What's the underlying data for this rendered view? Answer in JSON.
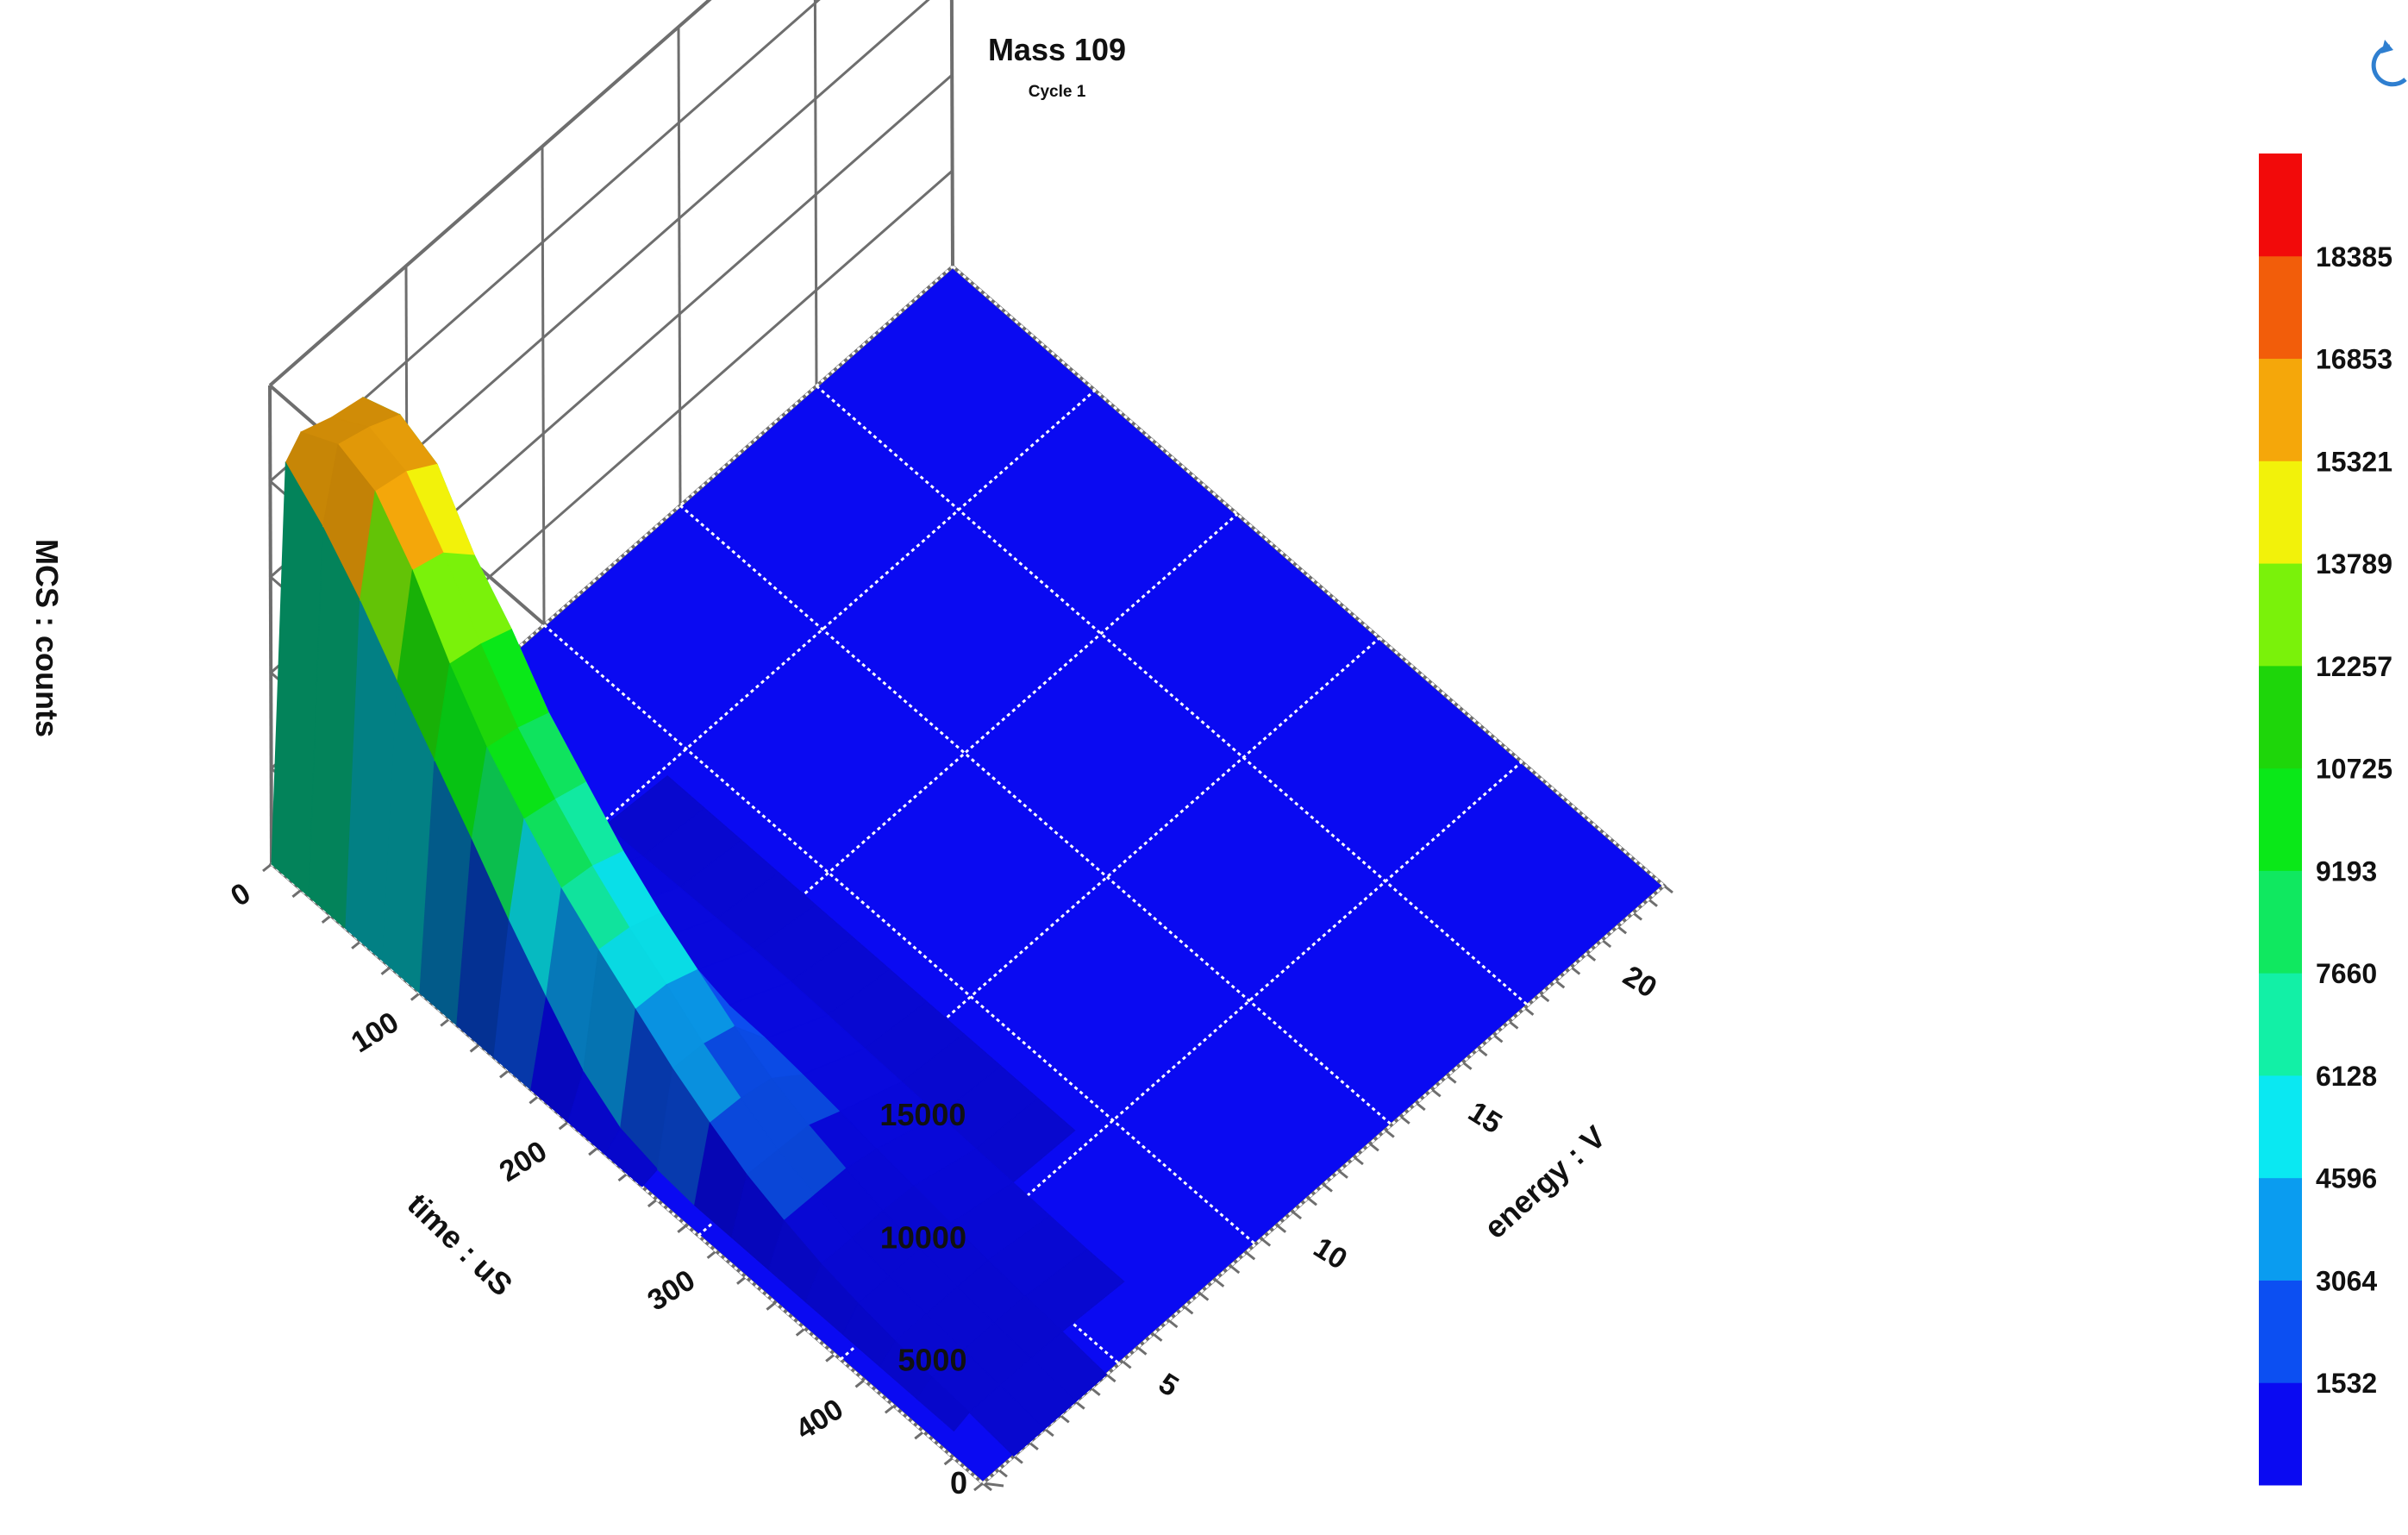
{
  "chart_data": {
    "type": "surface",
    "title": "Mass 109",
    "subtitle": "Cycle 1",
    "zlabel": "MCS : counts",
    "xlabel": "energy : V",
    "ylabel": "time : uS",
    "z_ticks": [
      "0",
      "5000",
      "10000",
      "15000"
    ],
    "x_ticks": [
      "5",
      "10",
      "15",
      "20"
    ],
    "y_ticks": [
      "0",
      "100",
      "200",
      "300",
      "400"
    ],
    "xlim": [
      0,
      22
    ],
    "ylim": [
      0,
      480
    ],
    "zlim": [
      0,
      19500
    ],
    "grid": true,
    "colorbar": {
      "ticks": [
        "1532",
        "3064",
        "4596",
        "6128",
        "7660",
        "9193",
        "10725",
        "12257",
        "13789",
        "15321",
        "16853",
        "18385"
      ],
      "colors": [
        "#0a0af2",
        "#0c4ff2",
        "#0a9cf0",
        "#0ae8f2",
        "#12f0a6",
        "#10e860",
        "#0ae818",
        "#1ed60a",
        "#7af20a",
        "#f2f20a",
        "#f5a70a",
        "#f25d0a",
        "#f20a0a"
      ],
      "colors_dark": [
        "#00005a",
        "#00205e",
        "#004a70",
        "#006e70",
        "#00704c",
        "#006a26",
        "#006a08",
        "#0c6000",
        "#3a7000",
        "#707000",
        "#784c00",
        "#7a2200",
        "#780000"
      ]
    },
    "surface": {
      "energy": [
        0,
        0.5,
        1,
        2,
        3,
        4,
        6,
        8,
        10,
        12,
        14,
        16,
        18,
        20,
        22
      ],
      "time": [
        0,
        25,
        50,
        75,
        100,
        125,
        150,
        175,
        200,
        225,
        250,
        275,
        300,
        325,
        350,
        375,
        400,
        425,
        450,
        480
      ],
      "counts": [
        [
          0,
          15800,
          16500,
          16000,
          15700,
          0,
          0,
          0,
          0,
          0,
          0,
          0,
          0,
          0,
          0
        ],
        [
          0,
          14500,
          17300,
          16900,
          16300,
          1100,
          0,
          0,
          0,
          0,
          0,
          0,
          0,
          0,
          0
        ],
        [
          0,
          12800,
          16700,
          16400,
          15600,
          1200,
          0,
          0,
          0,
          0,
          0,
          0,
          0,
          0,
          0
        ],
        [
          0,
          10800,
          14800,
          14400,
          13200,
          1300,
          0,
          0,
          0,
          0,
          0,
          0,
          0,
          0,
          0
        ],
        [
          0,
          8900,
          12300,
          12000,
          11500,
          1400,
          200,
          0,
          0,
          0,
          0,
          0,
          0,
          0,
          0
        ],
        [
          0,
          7000,
          10200,
          9900,
          9400,
          1500,
          250,
          0,
          0,
          0,
          0,
          0,
          0,
          0,
          0
        ],
        [
          0,
          5000,
          8600,
          8300,
          7900,
          1600,
          300,
          0,
          0,
          0,
          0,
          0,
          0,
          0,
          0
        ],
        [
          0,
          3200,
          7100,
          6900,
          6400,
          1650,
          350,
          0,
          0,
          0,
          0,
          0,
          0,
          0,
          0
        ],
        [
          0,
          1500,
          5900,
          5700,
          5200,
          1700,
          400,
          0,
          0,
          0,
          0,
          0,
          0,
          0,
          0
        ],
        [
          0,
          500,
          4800,
          4700,
          4200,
          1650,
          400,
          0,
          0,
          0,
          0,
          0,
          0,
          0,
          0
        ],
        [
          0,
          150,
          3700,
          3600,
          3200,
          1600,
          350,
          0,
          0,
          0,
          0,
          0,
          0,
          0,
          0
        ],
        [
          0,
          0,
          2800,
          2700,
          2400,
          1450,
          300,
          0,
          0,
          0,
          0,
          0,
          0,
          0,
          0
        ],
        [
          0,
          0,
          2000,
          1900,
          1800,
          1250,
          250,
          0,
          0,
          0,
          0,
          0,
          0,
          0,
          0
        ],
        [
          0,
          0,
          1450,
          1400,
          1350,
          1050,
          200,
          0,
          0,
          0,
          0,
          0,
          0,
          0,
          0
        ],
        [
          0,
          0,
          1000,
          950,
          950,
          850,
          150,
          0,
          0,
          0,
          0,
          0,
          0,
          0,
          0
        ],
        [
          0,
          0,
          700,
          700,
          700,
          650,
          100,
          0,
          0,
          0,
          0,
          0,
          0,
          0,
          0
        ],
        [
          0,
          0,
          480,
          480,
          480,
          450,
          50,
          0,
          0,
          0,
          0,
          0,
          0,
          0,
          0
        ],
        [
          0,
          0,
          320,
          320,
          320,
          300,
          0,
          0,
          0,
          0,
          0,
          0,
          0,
          0,
          0
        ],
        [
          0,
          0,
          200,
          200,
          200,
          180,
          0,
          0,
          0,
          0,
          0,
          0,
          0,
          0,
          0
        ],
        [
          0,
          0,
          0,
          0,
          0,
          0,
          0,
          0,
          0,
          0,
          0,
          0,
          0,
          0,
          0
        ]
      ]
    }
  },
  "ui": {
    "refresh_icon": "refresh-icon"
  }
}
